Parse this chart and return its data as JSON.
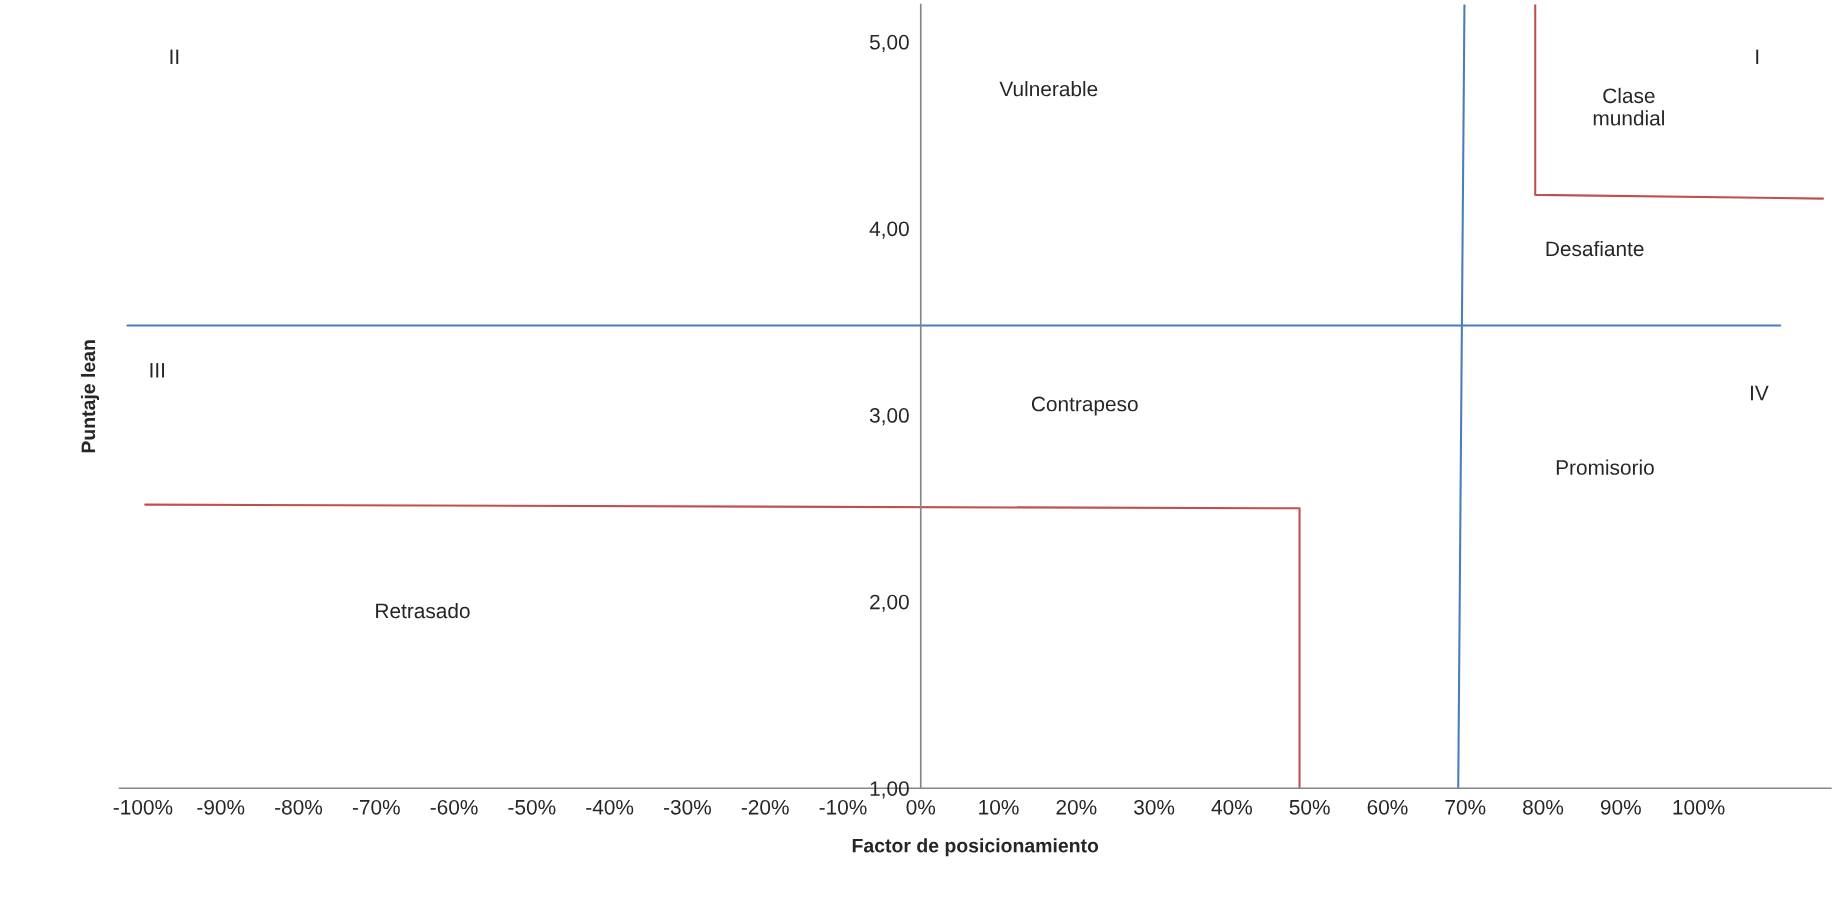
{
  "chart_data": {
    "type": "line",
    "xlabel": "Factor de posicionamiento",
    "ylabel": "Puntaje lean",
    "xlim": [
      -103,
      117
    ],
    "ylim": [
      1,
      5.2
    ],
    "xticks": [
      {
        "value": -100,
        "label": "-100%"
      },
      {
        "value": -90,
        "label": "-90%"
      },
      {
        "value": -80,
        "label": "-80%"
      },
      {
        "value": -70,
        "label": "-70%"
      },
      {
        "value": -60,
        "label": "-60%"
      },
      {
        "value": -50,
        "label": "-50%"
      },
      {
        "value": -40,
        "label": "-40%"
      },
      {
        "value": -30,
        "label": "-30%"
      },
      {
        "value": -20,
        "label": "-20%"
      },
      {
        "value": -10,
        "label": "-10%"
      },
      {
        "value": 0,
        "label": "0%"
      },
      {
        "value": 10,
        "label": "10%"
      },
      {
        "value": 20,
        "label": "20%"
      },
      {
        "value": 30,
        "label": "30%"
      },
      {
        "value": 40,
        "label": "40%"
      },
      {
        "value": 50,
        "label": "50%"
      },
      {
        "value": 60,
        "label": "60%"
      },
      {
        "value": 70,
        "label": "70%"
      },
      {
        "value": 80,
        "label": "80%"
      },
      {
        "value": 90,
        "label": "90%"
      },
      {
        "value": 100,
        "label": "100%"
      }
    ],
    "yticks": [
      {
        "value": 1,
        "label": "1,00"
      },
      {
        "value": 2,
        "label": "2,00"
      },
      {
        "value": 3,
        "label": "3,00"
      },
      {
        "value": 4,
        "label": "4,00"
      },
      {
        "value": 5,
        "label": "5,00"
      }
    ],
    "grid": false,
    "marker": "none",
    "line_style": "solid",
    "series": [
      {
        "color": "#4a7ebb",
        "x": [
          -102,
          110.5
        ],
        "values": [
          3.48,
          3.48
        ]
      },
      {
        "color": "#4a7ebb",
        "x": [
          69.9,
          69.1
        ],
        "values": [
          5.2,
          1.0
        ]
      },
      {
        "color": "#c0504d",
        "x": [
          79,
          79,
          116
        ],
        "values": [
          5.2,
          4.18,
          4.16
        ]
      },
      {
        "color": "#c0504d",
        "x": [
          -99.7,
          48.7,
          48.7
        ],
        "values": [
          2.52,
          2.5,
          1.0
        ]
      }
    ],
    "annotations": [
      "II",
      "Vulnerable",
      "I",
      "Clase\nmundial",
      "Desafiante",
      "III",
      "Contrapeso",
      "IV",
      "Promisorio",
      "Retrasado"
    ]
  }
}
